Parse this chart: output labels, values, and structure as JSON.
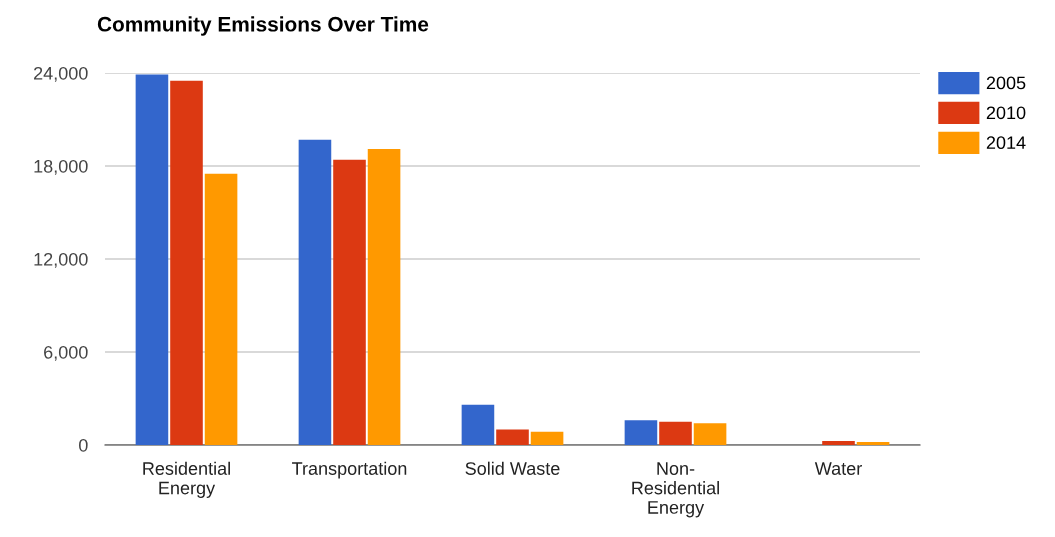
{
  "chart_data": {
    "type": "bar",
    "title": "Community Emissions Over Time",
    "categories": [
      "Residential\nEnergy",
      "Transportation",
      "Solid Waste",
      "Non-\nResidential\nEnergy",
      "Water"
    ],
    "series": [
      {
        "name": "2005",
        "color": "#3366cc",
        "values": [
          23900,
          19700,
          2600,
          1600,
          null
        ]
      },
      {
        "name": "2010",
        "color": "#dc3912",
        "values": [
          23500,
          18400,
          1000,
          1500,
          250
        ]
      },
      {
        "name": "2014",
        "color": "#ff9900",
        "values": [
          17500,
          19100,
          850,
          1400,
          200
        ]
      }
    ],
    "ylim": [
      0,
      24000
    ],
    "yticks": [
      {
        "value": 0,
        "label": "0"
      },
      {
        "value": 6000,
        "label": "6,000"
      },
      {
        "value": 12000,
        "label": "12,000"
      },
      {
        "value": 18000,
        "label": "18,000"
      },
      {
        "value": 24000,
        "label": "24,000"
      }
    ],
    "grid": "y",
    "legend": "right"
  }
}
